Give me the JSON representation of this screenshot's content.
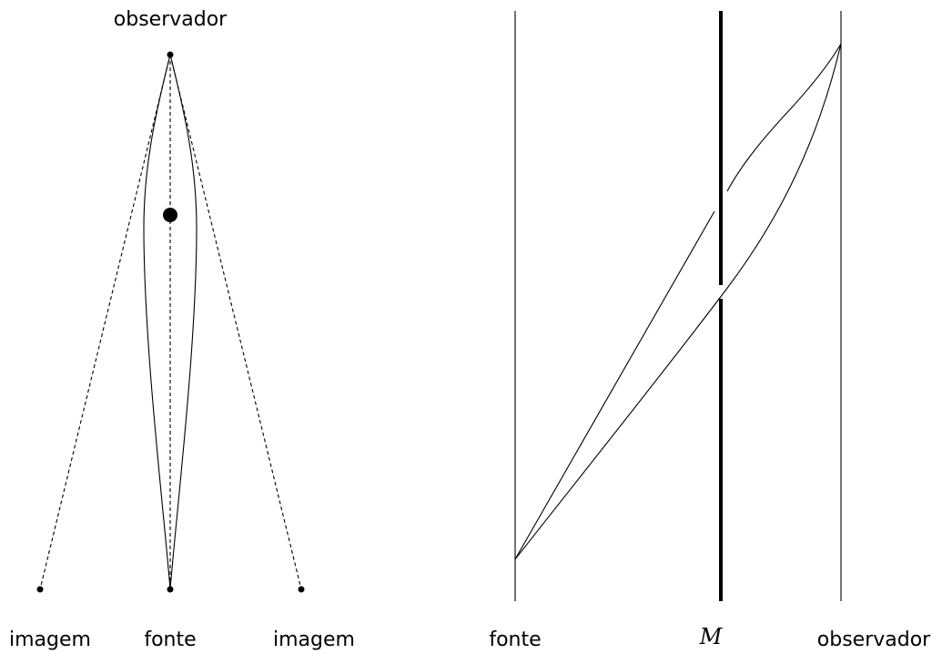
{
  "left_panel": {
    "observer_label": "observador",
    "source_label": "fonte",
    "image_left_label": "imagem",
    "image_right_label": "imagem"
  },
  "right_panel": {
    "source_label": "fonte",
    "mass_label": "M",
    "observer_label": "observador"
  }
}
